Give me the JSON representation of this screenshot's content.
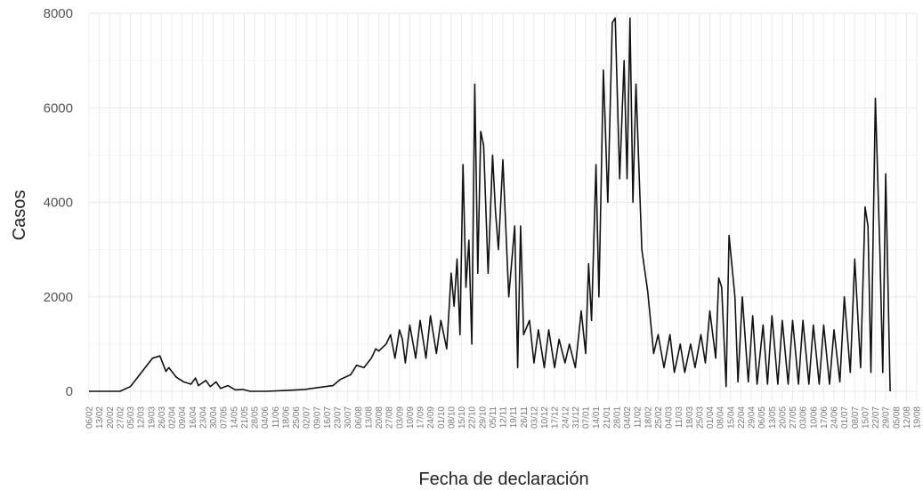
{
  "chart_data": {
    "type": "line",
    "title": "",
    "xlabel": "Fecha de declaración",
    "ylabel": "Casos",
    "ylim": [
      0,
      8000
    ],
    "yticks": [
      0,
      2000,
      4000,
      6000,
      8000
    ],
    "ytick_labels": [
      "0",
      "2000",
      "4000",
      "6000",
      "8000"
    ],
    "xlim": [
      "2020-02-06",
      "2021-08-19"
    ],
    "xtick_labels": [
      "06/02",
      "13/02",
      "20/02",
      "27/02",
      "05/03",
      "12/03",
      "19/03",
      "26/03",
      "02/04",
      "09/04",
      "16/04",
      "23/04",
      "30/04",
      "07/05",
      "14/05",
      "21/05",
      "28/05",
      "04/06",
      "11/06",
      "18/06",
      "25/06",
      "02/07",
      "09/07",
      "16/07",
      "23/07",
      "30/07",
      "06/08",
      "13/08",
      "20/08",
      "27/08",
      "03/09",
      "10/09",
      "17/09",
      "24/09",
      "01/10",
      "08/10",
      "15/10",
      "22/10",
      "29/10",
      "05/11",
      "12/11",
      "19/11",
      "26/11",
      "03/12",
      "10/12",
      "17/12",
      "24/12",
      "31/12",
      "07/01",
      "14/01",
      "21/01",
      "28/01",
      "04/02",
      "11/02",
      "18/02",
      "25/02",
      "04/03",
      "11/03",
      "18/03",
      "25/03",
      "01/04",
      "08/04",
      "15/04",
      "22/04",
      "29/04",
      "06/05",
      "13/05",
      "20/05",
      "27/05",
      "03/06",
      "10/06",
      "17/06",
      "24/06",
      "01/07",
      "08/07",
      "15/07",
      "22/07",
      "29/07",
      "05/08",
      "12/08",
      "19/08"
    ],
    "grid": true,
    "legend": "none",
    "line_color": "#111111",
    "series": [
      {
        "points": [
          [
            "2020-02-06",
            0
          ],
          [
            "2020-02-27",
            0
          ],
          [
            "2020-03-05",
            100
          ],
          [
            "2020-03-10",
            300
          ],
          [
            "2020-03-15",
            500
          ],
          [
            "2020-03-20",
            700
          ],
          [
            "2020-03-25",
            750
          ],
          [
            "2020-03-29",
            420
          ],
          [
            "2020-03-31",
            500
          ],
          [
            "2020-04-05",
            300
          ],
          [
            "2020-04-10",
            200
          ],
          [
            "2020-04-15",
            150
          ],
          [
            "2020-04-18",
            280
          ],
          [
            "2020-04-20",
            120
          ],
          [
            "2020-04-25",
            230
          ],
          [
            "2020-04-28",
            100
          ],
          [
            "2020-05-02",
            200
          ],
          [
            "2020-05-05",
            60
          ],
          [
            "2020-05-10",
            120
          ],
          [
            "2020-05-15",
            30
          ],
          [
            "2020-05-20",
            40
          ],
          [
            "2020-05-25",
            0
          ],
          [
            "2020-06-05",
            0
          ],
          [
            "2020-06-20",
            20
          ],
          [
            "2020-07-01",
            40
          ],
          [
            "2020-07-10",
            80
          ],
          [
            "2020-07-20",
            120
          ],
          [
            "2020-07-25",
            250
          ],
          [
            "2020-08-01",
            350
          ],
          [
            "2020-08-05",
            550
          ],
          [
            "2020-08-10",
            500
          ],
          [
            "2020-08-15",
            700
          ],
          [
            "2020-08-18",
            900
          ],
          [
            "2020-08-20",
            850
          ],
          [
            "2020-08-25",
            1000
          ],
          [
            "2020-08-28",
            1200
          ],
          [
            "2020-08-31",
            700
          ],
          [
            "2020-09-03",
            1300
          ],
          [
            "2020-09-05",
            1100
          ],
          [
            "2020-09-07",
            600
          ],
          [
            "2020-09-10",
            1400
          ],
          [
            "2020-09-14",
            700
          ],
          [
            "2020-09-17",
            1500
          ],
          [
            "2020-09-21",
            700
          ],
          [
            "2020-09-24",
            1600
          ],
          [
            "2020-09-28",
            800
          ],
          [
            "2020-10-01",
            1500
          ],
          [
            "2020-10-05",
            900
          ],
          [
            "2020-10-08",
            2500
          ],
          [
            "2020-10-10",
            1800
          ],
          [
            "2020-10-12",
            2800
          ],
          [
            "2020-10-14",
            1200
          ],
          [
            "2020-10-16",
            4800
          ],
          [
            "2020-10-18",
            2200
          ],
          [
            "2020-10-20",
            3200
          ],
          [
            "2020-10-22",
            1000
          ],
          [
            "2020-10-24",
            6500
          ],
          [
            "2020-10-26",
            2500
          ],
          [
            "2020-10-28",
            5500
          ],
          [
            "2020-10-30",
            5200
          ],
          [
            "2020-11-02",
            2500
          ],
          [
            "2020-11-05",
            5000
          ],
          [
            "2020-11-07",
            3800
          ],
          [
            "2020-11-09",
            3000
          ],
          [
            "2020-11-12",
            4900
          ],
          [
            "2020-11-16",
            2000
          ],
          [
            "2020-11-20",
            3500
          ],
          [
            "2020-11-22",
            500
          ],
          [
            "2020-11-24",
            3500
          ],
          [
            "2020-11-26",
            1200
          ],
          [
            "2020-11-30",
            1500
          ],
          [
            "2020-12-03",
            600
          ],
          [
            "2020-12-06",
            1300
          ],
          [
            "2020-12-10",
            500
          ],
          [
            "2020-12-13",
            1300
          ],
          [
            "2020-12-17",
            500
          ],
          [
            "2020-12-20",
            1100
          ],
          [
            "2020-12-24",
            600
          ],
          [
            "2020-12-27",
            1000
          ],
          [
            "2020-12-31",
            500
          ],
          [
            "2021-01-04",
            1700
          ],
          [
            "2021-01-07",
            800
          ],
          [
            "2021-01-09",
            2700
          ],
          [
            "2021-01-11",
            1500
          ],
          [
            "2021-01-14",
            4800
          ],
          [
            "2021-01-16",
            2000
          ],
          [
            "2021-01-19",
            6800
          ],
          [
            "2021-01-22",
            4000
          ],
          [
            "2021-01-25",
            7800
          ],
          [
            "2021-01-27",
            7900
          ],
          [
            "2021-01-30",
            4500
          ],
          [
            "2021-02-02",
            7000
          ],
          [
            "2021-02-04",
            4500
          ],
          [
            "2021-02-06",
            7900
          ],
          [
            "2021-02-08",
            4000
          ],
          [
            "2021-02-10",
            6500
          ],
          [
            "2021-02-14",
            3000
          ],
          [
            "2021-02-18",
            2100
          ],
          [
            "2021-02-22",
            800
          ],
          [
            "2021-02-25",
            1200
          ],
          [
            "2021-03-01",
            500
          ],
          [
            "2021-03-05",
            1200
          ],
          [
            "2021-03-08",
            400
          ],
          [
            "2021-03-12",
            1000
          ],
          [
            "2021-03-15",
            400
          ],
          [
            "2021-03-19",
            1000
          ],
          [
            "2021-03-22",
            500
          ],
          [
            "2021-03-26",
            1200
          ],
          [
            "2021-03-29",
            600
          ],
          [
            "2021-04-01",
            1700
          ],
          [
            "2021-04-05",
            700
          ],
          [
            "2021-04-07",
            2400
          ],
          [
            "2021-04-09",
            2200
          ],
          [
            "2021-04-12",
            100
          ],
          [
            "2021-04-14",
            3300
          ],
          [
            "2021-04-18",
            2000
          ],
          [
            "2021-04-20",
            200
          ],
          [
            "2021-04-23",
            2000
          ],
          [
            "2021-04-27",
            200
          ],
          [
            "2021-04-30",
            1600
          ],
          [
            "2021-05-03",
            150
          ],
          [
            "2021-05-07",
            1400
          ],
          [
            "2021-05-10",
            150
          ],
          [
            "2021-05-13",
            1600
          ],
          [
            "2021-05-17",
            150
          ],
          [
            "2021-05-20",
            1500
          ],
          [
            "2021-05-24",
            150
          ],
          [
            "2021-05-27",
            1500
          ],
          [
            "2021-05-31",
            150
          ],
          [
            "2021-06-03",
            1500
          ],
          [
            "2021-06-07",
            150
          ],
          [
            "2021-06-10",
            1400
          ],
          [
            "2021-06-14",
            150
          ],
          [
            "2021-06-17",
            1400
          ],
          [
            "2021-06-21",
            150
          ],
          [
            "2021-06-24",
            1300
          ],
          [
            "2021-06-28",
            200
          ],
          [
            "2021-07-01",
            2000
          ],
          [
            "2021-07-05",
            400
          ],
          [
            "2021-07-08",
            2800
          ],
          [
            "2021-07-12",
            500
          ],
          [
            "2021-07-15",
            3900
          ],
          [
            "2021-07-17",
            3500
          ],
          [
            "2021-07-19",
            400
          ],
          [
            "2021-07-22",
            6200
          ],
          [
            "2021-07-25",
            3000
          ],
          [
            "2021-07-27",
            400
          ],
          [
            "2021-07-29",
            4600
          ],
          [
            "2021-08-01",
            0
          ]
        ]
      }
    ]
  },
  "colors": {
    "grid": "#ebebeb",
    "line": "#111111",
    "background": "#ffffff"
  }
}
